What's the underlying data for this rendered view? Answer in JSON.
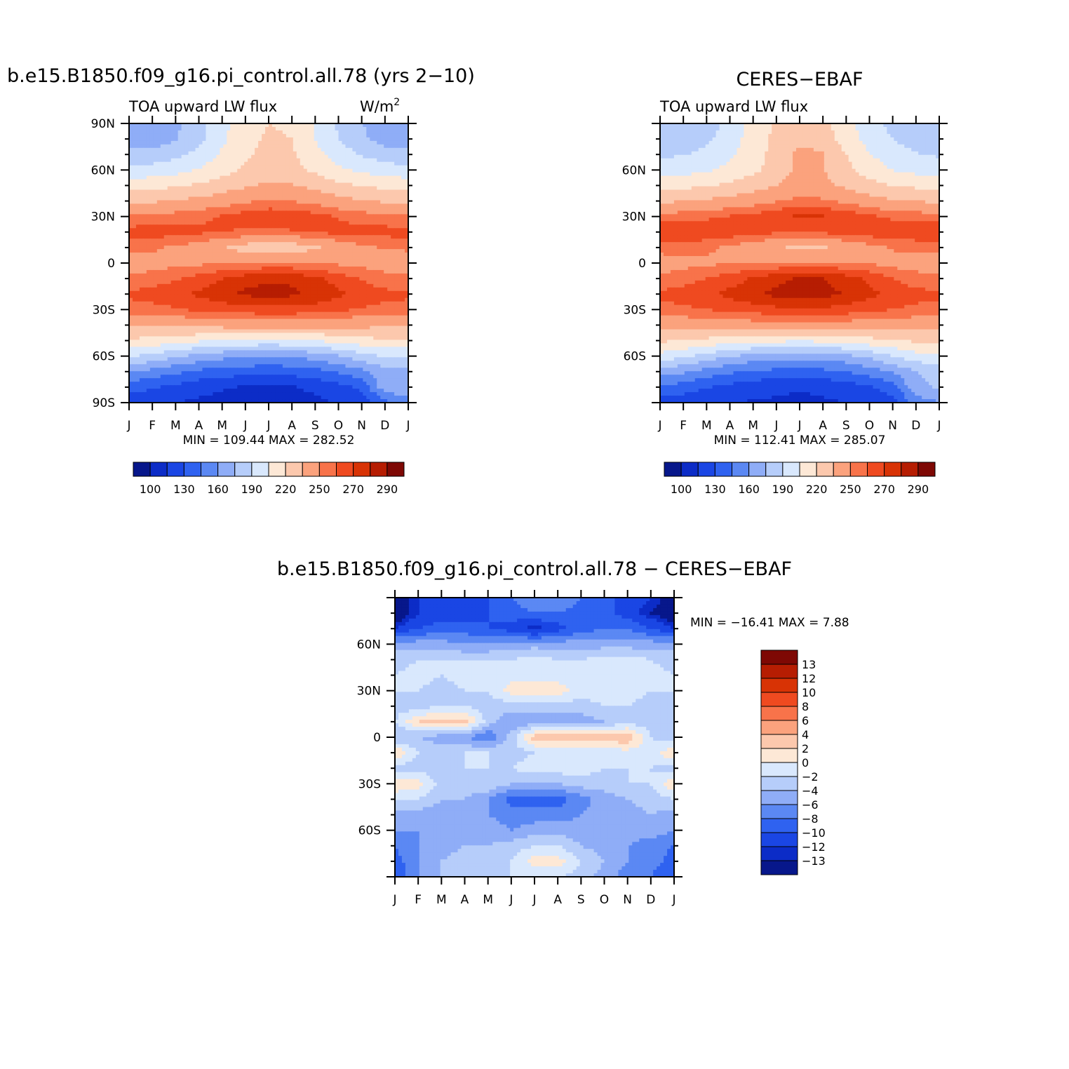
{
  "chart_data": [
    {
      "type": "heatmap",
      "title": "b.e15.B1850.f09_g16.pi_control.all.78 (yrs 2−10)",
      "subtitle_left": "TOA upward LW flux",
      "units": "W/m",
      "units_sup": "2",
      "x": [
        "J",
        "F",
        "M",
        "A",
        "M",
        "J",
        "J",
        "A",
        "S",
        "O",
        "N",
        "D",
        "J"
      ],
      "y_ticks": [
        "90N",
        "60N",
        "30N",
        "0",
        "30S",
        "60S",
        "90S"
      ],
      "y_range": [
        -90,
        90
      ],
      "stats": "MIN = 109.44  MAX = 282.52",
      "colorbar": {
        "labels": [
          "100",
          "130",
          "160",
          "190",
          "220",
          "250",
          "270",
          "290"
        ],
        "colors": [
          "#07178b",
          "#0c2cc7",
          "#1a46e4",
          "#2f62f0",
          "#5b88f3",
          "#8fadf7",
          "#b6cdfa",
          "#d9e8fd",
          "#fde8d6",
          "#fcc8ad",
          "#fba27d",
          "#f8734a",
          "#ef4a20",
          "#d83305",
          "#b61d02",
          "#7e0804"
        ]
      },
      "rows_lat": [
        90,
        80,
        70,
        60,
        50,
        40,
        30,
        20,
        10,
        0,
        -10,
        -20,
        -30,
        -40,
        -50,
        -60,
        -70,
        -80,
        -90
      ],
      "values": [
        [
          163,
          164,
          172,
          184,
          200,
          215,
          220,
          218,
          203,
          188,
          176,
          166,
          163
        ],
        [
          165,
          166,
          174,
          186,
          202,
          216,
          222,
          220,
          205,
          190,
          178,
          168,
          165
        ],
        [
          180,
          181,
          186,
          195,
          207,
          218,
          224,
          222,
          210,
          198,
          189,
          182,
          180
        ],
        [
          195,
          196,
          200,
          206,
          214,
          222,
          228,
          226,
          217,
          208,
          202,
          197,
          195
        ],
        [
          214,
          215,
          218,
          222,
          228,
          233,
          238,
          236,
          230,
          224,
          219,
          216,
          214
        ],
        [
          232,
          233,
          236,
          239,
          243,
          248,
          252,
          250,
          246,
          240,
          236,
          233,
          232
        ],
        [
          252,
          253,
          255,
          258,
          261,
          265,
          268,
          267,
          264,
          259,
          256,
          253,
          252
        ],
        [
          264,
          265,
          264,
          262,
          260,
          259,
          258,
          259,
          261,
          263,
          264,
          264,
          264
        ],
        [
          252,
          252,
          248,
          244,
          237,
          228,
          224,
          226,
          233,
          241,
          247,
          251,
          252
        ],
        [
          243,
          245,
          247,
          248,
          249,
          250,
          251,
          251,
          250,
          248,
          246,
          244,
          243
        ],
        [
          252,
          255,
          259,
          264,
          270,
          276,
          279,
          278,
          273,
          266,
          259,
          254,
          252
        ],
        [
          262,
          264,
          267,
          272,
          277,
          282,
          283,
          282,
          278,
          272,
          266,
          263,
          262
        ],
        [
          256,
          257,
          259,
          262,
          264,
          266,
          267,
          267,
          265,
          262,
          259,
          257,
          256
        ],
        [
          238,
          238,
          239,
          240,
          241,
          242,
          242,
          242,
          241,
          240,
          239,
          238,
          238
        ],
        [
          218,
          215,
          211,
          207,
          204,
          202,
          201,
          202,
          205,
          210,
          215,
          218,
          218
        ],
        [
          192,
          186,
          178,
          170,
          165,
          162,
          161,
          162,
          166,
          174,
          184,
          192,
          192
        ],
        [
          160,
          155,
          148,
          142,
          138,
          136,
          135,
          136,
          140,
          147,
          156,
          170,
          172
        ],
        [
          136,
          132,
          126,
          120,
          116,
          114,
          112,
          114,
          118,
          124,
          134,
          170,
          175
        ],
        [
          120,
          118,
          115,
          112,
          111,
          110,
          109,
          110,
          112,
          116,
          122,
          140,
          150
        ]
      ]
    },
    {
      "type": "heatmap",
      "title": "CERES−EBAF",
      "subtitle_left": "TOA upward LW flux",
      "x": [
        "J",
        "F",
        "M",
        "A",
        "M",
        "J",
        "J",
        "A",
        "S",
        "O",
        "N",
        "D",
        "J"
      ],
      "y_ticks": [
        "60N",
        "30N",
        "0",
        "30S",
        "60S"
      ],
      "y_range": [
        -90,
        90
      ],
      "stats": "MIN = 112.41  MAX = 285.07",
      "colorbar": {
        "labels": [
          "100",
          "130",
          "160",
          "190",
          "220",
          "250",
          "270",
          "290"
        ],
        "colors": [
          "#07178b",
          "#0c2cc7",
          "#1a46e4",
          "#2f62f0",
          "#5b88f3",
          "#8fadf7",
          "#b6cdfa",
          "#d9e8fd",
          "#fde8d6",
          "#fcc8ad",
          "#fba27d",
          "#f8734a",
          "#ef4a20",
          "#d83305",
          "#b61d02",
          "#7e0804"
        ]
      },
      "rows_lat": [
        90,
        80,
        70,
        60,
        50,
        40,
        30,
        20,
        10,
        0,
        -10,
        -20,
        -30,
        -40,
        -50,
        -60,
        -70,
        -80,
        -90
      ],
      "values": [
        [
          175,
          176,
          183,
          195,
          210,
          222,
          226,
          224,
          210,
          196,
          186,
          178,
          175
        ],
        [
          180,
          181,
          187,
          198,
          212,
          224,
          230,
          228,
          213,
          199,
          190,
          183,
          180
        ],
        [
          188,
          189,
          194,
          202,
          213,
          226,
          240,
          236,
          220,
          206,
          197,
          191,
          188
        ],
        [
          198,
          199,
          203,
          209,
          217,
          226,
          240,
          236,
          224,
          212,
          205,
          200,
          198
        ],
        [
          215,
          216,
          219,
          223,
          229,
          235,
          241,
          239,
          232,
          225,
          220,
          217,
          215
        ],
        [
          233,
          234,
          237,
          240,
          244,
          249,
          254,
          252,
          247,
          241,
          237,
          234,
          233
        ],
        [
          255,
          256,
          258,
          261,
          264,
          268,
          272,
          271,
          267,
          262,
          258,
          256,
          255
        ],
        [
          268,
          270,
          268,
          266,
          263,
          262,
          261,
          262,
          264,
          266,
          267,
          267,
          268
        ],
        [
          255,
          255,
          252,
          248,
          243,
          236,
          233,
          234,
          239,
          246,
          251,
          254,
          255
        ],
        [
          243,
          246,
          248,
          249,
          250,
          251,
          252,
          252,
          251,
          249,
          246,
          244,
          243
        ],
        [
          253,
          256,
          260,
          265,
          271,
          277,
          281,
          280,
          275,
          268,
          260,
          255,
          253
        ],
        [
          262,
          264,
          268,
          273,
          278,
          283,
          285,
          284,
          279,
          273,
          267,
          263,
          262
        ],
        [
          257,
          258,
          260,
          263,
          265,
          267,
          268,
          268,
          266,
          263,
          260,
          258,
          257
        ],
        [
          241,
          241,
          242,
          243,
          244,
          245,
          245,
          245,
          244,
          243,
          242,
          241,
          241
        ],
        [
          222,
          220,
          216,
          213,
          210,
          208,
          207,
          208,
          211,
          215,
          219,
          222,
          222
        ],
        [
          200,
          193,
          184,
          176,
          170,
          167,
          166,
          167,
          171,
          179,
          190,
          200,
          200
        ],
        [
          168,
          162,
          154,
          148,
          143,
          141,
          140,
          141,
          145,
          152,
          162,
          175,
          178
        ],
        [
          142,
          138,
          131,
          125,
          120,
          118,
          116,
          118,
          122,
          128,
          138,
          172,
          176
        ],
        [
          124,
          121,
          118,
          115,
          114,
          113,
          112,
          113,
          115,
          118,
          124,
          150,
          160
        ]
      ]
    },
    {
      "type": "heatmap",
      "title": "b.e15.B1850.f09_g16.pi_control.all.78 − CERES−EBAF",
      "x": [
        "J",
        "F",
        "M",
        "A",
        "M",
        "J",
        "J",
        "A",
        "S",
        "O",
        "N",
        "D",
        "J"
      ],
      "y_ticks": [
        "60N",
        "30N",
        "0",
        "30S",
        "60S"
      ],
      "y_range": [
        -90,
        90
      ],
      "stats": "MIN = −16.41  MAX =    7.88",
      "colorbar": {
        "labels": [
          "13",
          "12",
          "10",
          "8",
          "6",
          "4",
          "2",
          "0",
          "−2",
          "−4",
          "−6",
          "−8",
          "−10",
          "−12",
          "−13"
        ],
        "colors": [
          "#7e0804",
          "#b61d02",
          "#d83305",
          "#ef4a20",
          "#f8734a",
          "#fba27d",
          "#fcc8ad",
          "#fde8d6",
          "#d9e8fd",
          "#b6cdfa",
          "#8fadf7",
          "#5b88f3",
          "#2f62f0",
          "#1a46e4",
          "#0c2cc7",
          "#07178b"
        ]
      },
      "rows_lat": [
        90,
        80,
        70,
        60,
        50,
        40,
        30,
        20,
        10,
        0,
        -10,
        -20,
        -30,
        -40,
        -50,
        -60,
        -70,
        -80,
        -90
      ],
      "values": [
        [
          -14,
          -12,
          -11,
          -11,
          -10,
          -8,
          -6,
          -6,
          -8,
          -9,
          -11,
          -12,
          -14
        ],
        [
          -15,
          -12,
          -11,
          -11,
          -10,
          -9,
          -8,
          -8,
          -9,
          -9,
          -11,
          -13,
          -15
        ],
        [
          -12,
          -10,
          -9,
          -9,
          -10,
          -11,
          -13,
          -11,
          -9,
          -8,
          -8,
          -10,
          -12
        ],
        [
          -5,
          -5,
          -5,
          -6,
          -6,
          -5,
          -5,
          -5,
          -5,
          -5,
          -5,
          -5,
          -5
        ],
        [
          -3,
          -2,
          -2,
          -2,
          -2,
          -2,
          -1,
          -2,
          -2,
          -1,
          -1,
          -2,
          -3
        ],
        [
          -2,
          -1,
          -2,
          -1,
          -1,
          -1,
          -1,
          -1,
          -1,
          -1,
          -1,
          -1,
          -2
        ],
        [
          -2,
          -2,
          -3,
          -2,
          -2,
          1,
          2,
          1,
          -1,
          -1,
          -1,
          -2,
          -2
        ],
        [
          -3,
          -3,
          -2,
          -2,
          -3,
          -3,
          -3,
          -3,
          -3,
          -2,
          -2,
          -3,
          -3
        ],
        [
          -2,
          2,
          3,
          3,
          -3,
          -6,
          -5,
          -5,
          -5,
          -4,
          -3,
          -3,
          -2
        ],
        [
          -4,
          -4,
          -5,
          -6,
          -8,
          -3,
          3,
          4,
          3,
          3,
          4,
          -2,
          -4
        ],
        [
          2,
          -2,
          -3,
          -2,
          -2,
          -3,
          -2,
          -2,
          -1,
          -1,
          -1,
          -1,
          2
        ],
        [
          -3,
          -3,
          -3,
          -2,
          -2,
          -2,
          -1,
          -1,
          -1,
          -2,
          -2,
          -2,
          -3
        ],
        [
          2,
          1,
          -3,
          -3,
          -2,
          -4,
          -4,
          -4,
          -3,
          -3,
          -2,
          -2,
          2
        ],
        [
          -2,
          -2,
          -4,
          -4,
          -6,
          -9,
          -9,
          -9,
          -7,
          -5,
          -4,
          -3,
          -2
        ],
        [
          -5,
          -5,
          -5,
          -5,
          -6,
          -7,
          -7,
          -7,
          -6,
          -5,
          -5,
          -4,
          -5
        ],
        [
          -6,
          -6,
          -5,
          -5,
          -5,
          -6,
          -5,
          -5,
          -5,
          -5,
          -5,
          -5,
          -6
        ],
        [
          -8,
          -6,
          -5,
          -4,
          -4,
          -3,
          -2,
          -2,
          -4,
          -5,
          -6,
          -7,
          -8
        ],
        [
          -9,
          -6,
          -4,
          -3,
          -3,
          -2,
          1,
          1,
          -2,
          -4,
          -6,
          -7,
          -9
        ],
        [
          -10,
          -6,
          -4,
          -3,
          -3,
          -2,
          -2,
          -2,
          -3,
          -5,
          -7,
          -8,
          -10
        ]
      ]
    }
  ]
}
